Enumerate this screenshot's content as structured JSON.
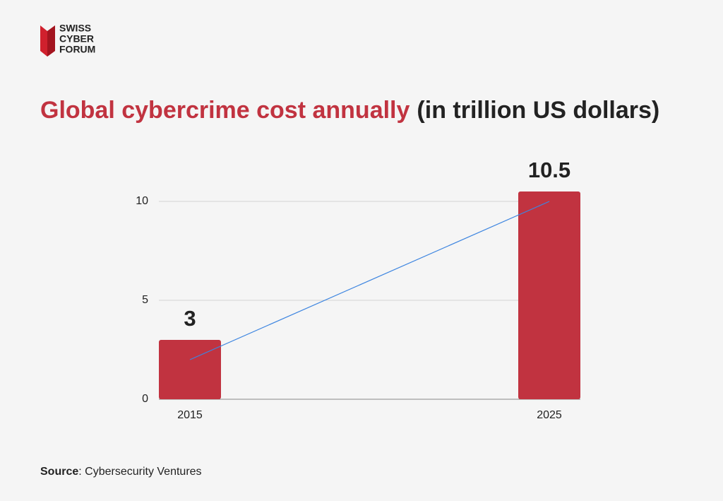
{
  "logo": [
    "SWISS",
    "CYBER",
    "FORUM"
  ],
  "chart_data": {
    "type": "bar",
    "title": "Global cybercrime cost annually",
    "subtitle": "(in trillion US dollars)",
    "categories": [
      "2015",
      "2025"
    ],
    "values": [
      3,
      10.5
    ],
    "color": "#c13340",
    "trendline": {
      "color": "#3d85e0",
      "values": [
        2,
        10
      ]
    },
    "ylim": [
      0,
      10.5
    ],
    "yticks": [
      0,
      5,
      10
    ],
    "grid": true
  },
  "source": {
    "label": "Source",
    "text": ": Cybersecurity Ventures"
  }
}
